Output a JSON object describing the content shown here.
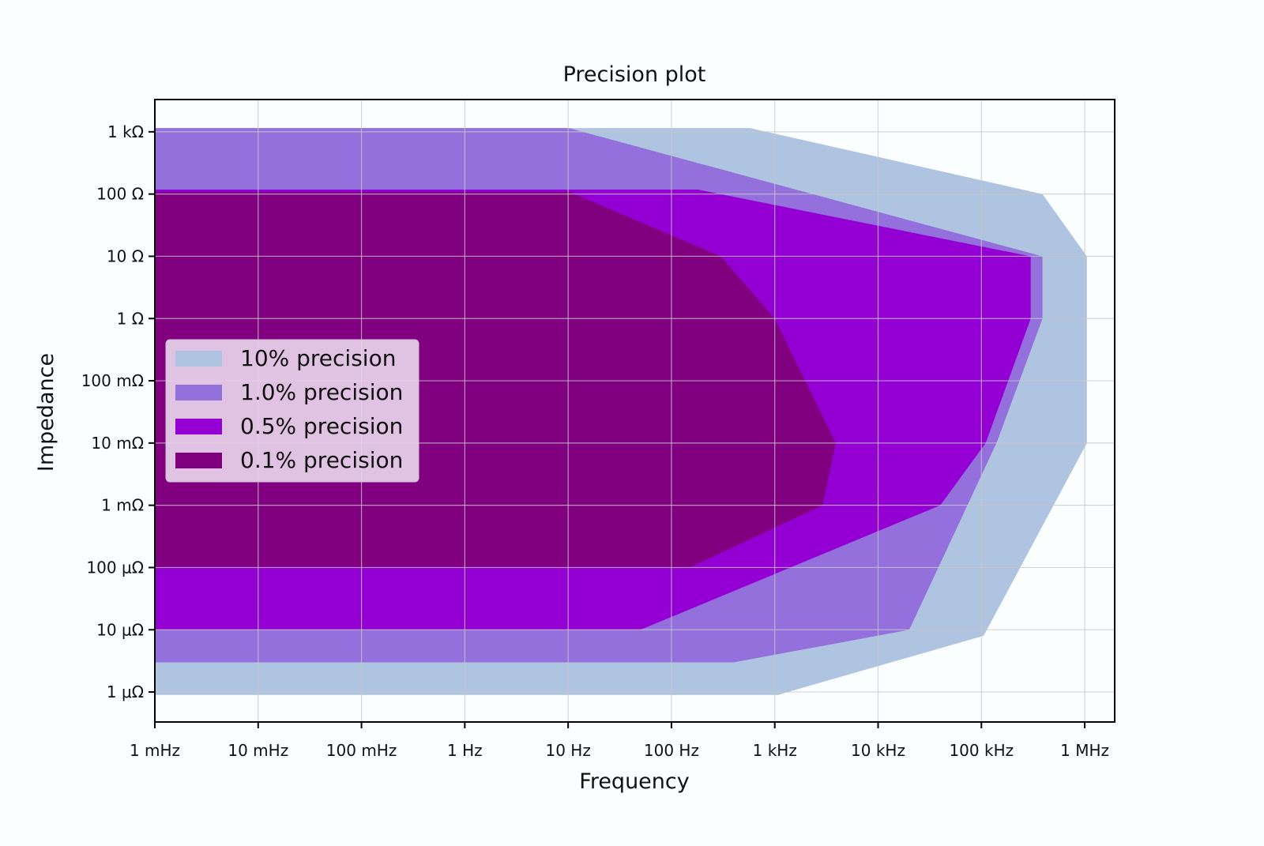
{
  "chart_data": {
    "type": "area",
    "title": "Precision plot",
    "xlabel": "Frequency",
    "ylabel": "Impedance",
    "xscale": "log",
    "yscale": "log",
    "xlim_hz": [
      0.001,
      1950000
    ],
    "ylim_ohm": [
      3.3e-07,
      3300
    ],
    "x_ticks": [
      {
        "value": 0.001,
        "label": "1 mHz"
      },
      {
        "value": 0.01,
        "label": "10 mHz"
      },
      {
        "value": 0.1,
        "label": "100 mHz"
      },
      {
        "value": 1,
        "label": "1 Hz"
      },
      {
        "value": 10,
        "label": "10 Hz"
      },
      {
        "value": 100,
        "label": "100 Hz"
      },
      {
        "value": 1000,
        "label": "1 kHz"
      },
      {
        "value": 10000,
        "label": "10 kHz"
      },
      {
        "value": 100000,
        "label": "100 kHz"
      },
      {
        "value": 1000000,
        "label": "1 MHz"
      }
    ],
    "y_ticks": [
      {
        "value": 1000,
        "label": "1 kΩ"
      },
      {
        "value": 100,
        "label": "100 Ω"
      },
      {
        "value": 10,
        "label": "10 Ω"
      },
      {
        "value": 1,
        "label": "1 Ω"
      },
      {
        "value": 0.1,
        "label": "100 mΩ"
      },
      {
        "value": 0.01,
        "label": "10 mΩ"
      },
      {
        "value": 0.001,
        "label": "1 mΩ"
      },
      {
        "value": 0.0001,
        "label": "100 μΩ"
      },
      {
        "value": 1e-05,
        "label": "10 μΩ"
      },
      {
        "value": 1e-06,
        "label": "1 μΩ"
      }
    ],
    "grid": true,
    "legend_position": "center-left",
    "series": [
      {
        "name": "10% precision",
        "color": "#aec4e0",
        "points_hz_ohm": [
          [
            0.001,
            1150
          ],
          [
            575,
            1150
          ],
          [
            390000,
            100
          ],
          [
            1050000,
            10
          ],
          [
            1050000,
            0.01
          ],
          [
            105000,
            8e-06
          ],
          [
            1070,
            9e-07
          ],
          [
            0.001,
            9e-07
          ]
        ]
      },
      {
        "name": "1.0% precision",
        "color": "#9370db",
        "points_hz_ohm": [
          [
            0.001,
            1150
          ],
          [
            10.1,
            1150
          ],
          [
            390000,
            10
          ],
          [
            390000,
            1
          ],
          [
            140000,
            0.01
          ],
          [
            20000,
            1e-05
          ],
          [
            400,
            3e-06
          ],
          [
            0.001,
            3e-06
          ]
        ]
      },
      {
        "name": "0.5% precision",
        "color": "#9400d3",
        "points_hz_ohm": [
          [
            0.001,
            118
          ],
          [
            180,
            118
          ],
          [
            300000,
            10
          ],
          [
            300000,
            1
          ],
          [
            110000,
            0.01
          ],
          [
            40000,
            0.001
          ],
          [
            50,
            1e-05
          ],
          [
            0.001,
            1e-05
          ]
        ]
      },
      {
        "name": "0.1% precision",
        "color": "#800080",
        "points_hz_ohm": [
          [
            0.001,
            107
          ],
          [
            10.5,
            107
          ],
          [
            300,
            10
          ],
          [
            1000,
            1
          ],
          [
            3900,
            0.01
          ],
          [
            2900,
            0.001
          ],
          [
            150,
            0.0001
          ],
          [
            0.001,
            0.0001
          ]
        ]
      }
    ]
  }
}
